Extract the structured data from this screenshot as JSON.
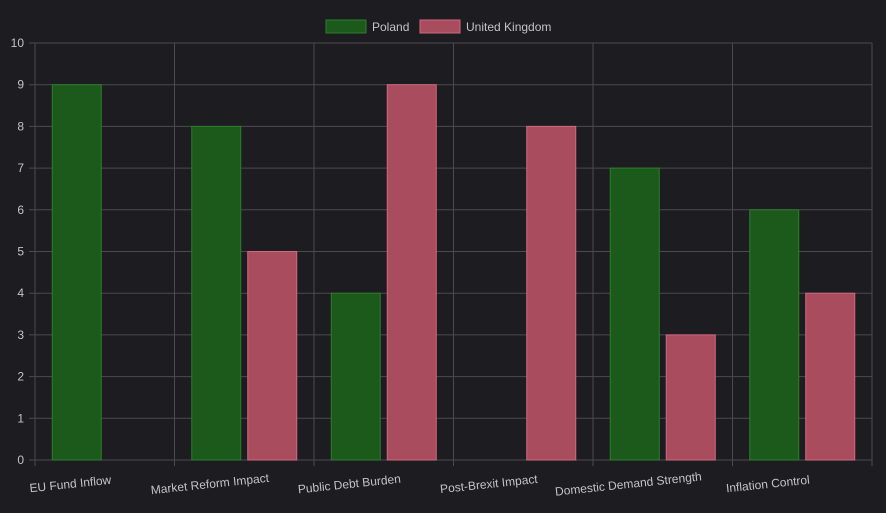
{
  "chart_data": {
    "type": "bar",
    "categories": [
      "EU Fund Inflow",
      "Market Reform Impact",
      "Public Debt Burden",
      "Post-Brexit Impact",
      "Domestic Demand Strength",
      "Inflation Control"
    ],
    "series": [
      {
        "name": "Poland",
        "values": [
          9,
          8,
          4,
          0,
          7,
          6
        ],
        "color": "#1c5a1c",
        "border": "#2e7d2e"
      },
      {
        "name": "United Kingdom",
        "values": [
          0,
          5,
          9,
          8,
          3,
          4
        ],
        "color": "#a84c5e",
        "border": "#d06a80"
      }
    ],
    "ylim": [
      0,
      10
    ],
    "yticks": [
      0,
      1,
      2,
      3,
      4,
      5,
      6,
      7,
      8,
      9,
      10
    ],
    "grid": true,
    "legend_position": "top-center",
    "xlabel": "",
    "ylabel": "",
    "title": ""
  }
}
